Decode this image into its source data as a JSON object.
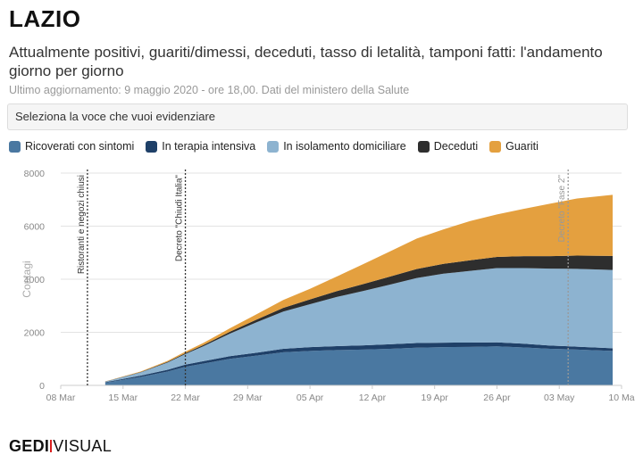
{
  "header": {
    "title": "LAZIO",
    "subtitle": "Attualmente positivi, guariti/dimessi, deceduti, tasso di letalità, tamponi fatti: l'andamento giorno per giorno",
    "updated": "Ultimo aggiornamento: 9 maggio 2020 - ore 18,00. Dati del ministero della Salute"
  },
  "selector": {
    "placeholder": "Seleziona la voce che vuoi evidenziare"
  },
  "legend": [
    {
      "label": "Ricoverati con sintomi",
      "color": "#4a78a1"
    },
    {
      "label": "In terapia intensiva",
      "color": "#1f4068"
    },
    {
      "label": "In isolamento domiciliare",
      "color": "#8db3d0"
    },
    {
      "label": "Deceduti",
      "color": "#2e2e2e"
    },
    {
      "label": "Guariti",
      "color": "#e4a03f"
    }
  ],
  "logo": {
    "part1": "GEDI",
    "part2": "VISUAL"
  },
  "chart_data": {
    "type": "area",
    "stacked": true,
    "ylabel": "Contagi",
    "ylim": [
      0,
      8000
    ],
    "yticks": [
      0,
      2000,
      4000,
      6000,
      8000
    ],
    "xlim": [
      "2020-03-08",
      "2020-05-10"
    ],
    "xticks": [
      "08 Mar",
      "15 Mar",
      "22 Mar",
      "29 Mar",
      "05 Apr",
      "12 Apr",
      "19 Apr",
      "26 Apr",
      "03 May",
      "10 Ma"
    ],
    "grid": true,
    "x": [
      "2020-03-13",
      "2020-03-17",
      "2020-03-20",
      "2020-03-22",
      "2020-03-24",
      "2020-03-27",
      "2020-03-30",
      "2020-04-02",
      "2020-04-05",
      "2020-04-08",
      "2020-04-11",
      "2020-04-14",
      "2020-04-17",
      "2020-04-20",
      "2020-04-23",
      "2020-04-26",
      "2020-04-29",
      "2020-05-02",
      "2020-05-05",
      "2020-05-09"
    ],
    "series": [
      {
        "name": "Ricoverati con sintomi",
        "color": "#4a78a1",
        "values": [
          100,
          320,
          520,
          700,
          820,
          1000,
          1120,
          1250,
          1300,
          1330,
          1350,
          1380,
          1420,
          1440,
          1450,
          1470,
          1430,
          1380,
          1350,
          1300
        ]
      },
      {
        "name": "In terapia intensiva",
        "color": "#1f4068",
        "values": [
          20,
          50,
          70,
          80,
          90,
          100,
          110,
          130,
          140,
          150,
          160,
          170,
          175,
          170,
          165,
          150,
          140,
          120,
          110,
          100
        ]
      },
      {
        "name": "In isolamento domiciliare",
        "color": "#8db3d0",
        "values": [
          20,
          120,
          270,
          400,
          560,
          850,
          1150,
          1400,
          1620,
          1850,
          2050,
          2250,
          2450,
          2600,
          2700,
          2800,
          2850,
          2900,
          2930,
          2950
        ]
      },
      {
        "name": "Deceduti",
        "color": "#2e2e2e",
        "values": [
          5,
          15,
          25,
          35,
          45,
          70,
          100,
          140,
          180,
          220,
          260,
          300,
          340,
          370,
          400,
          420,
          450,
          470,
          500,
          530
        ]
      },
      {
        "name": "Guariti",
        "color": "#e4a03f",
        "values": [
          5,
          20,
          40,
          60,
          80,
          130,
          200,
          300,
          400,
          550,
          750,
          950,
          1150,
          1300,
          1480,
          1600,
          1780,
          1980,
          2150,
          2300
        ]
      }
    ],
    "annotations": [
      {
        "date": "2020-03-11",
        "label": "Ristoranti e negozi chiusi",
        "color": "#333333"
      },
      {
        "date": "2020-03-22",
        "label": "Decreto \"Chiudi Italia\"",
        "color": "#333333"
      },
      {
        "date": "2020-05-04",
        "label": "Decreto \"Fase 2\"",
        "color": "#999999"
      }
    ]
  }
}
